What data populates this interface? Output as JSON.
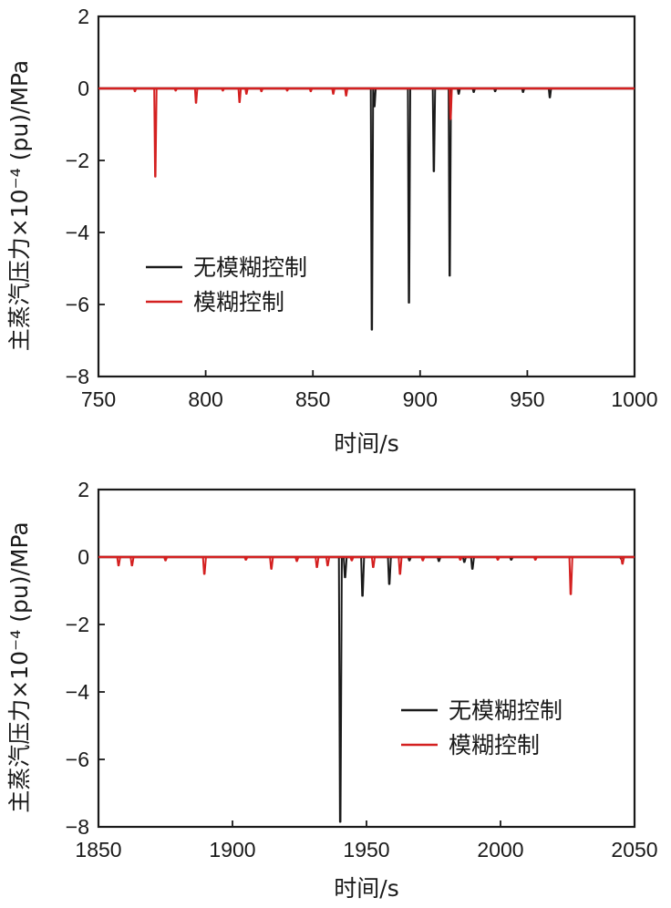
{
  "chart_data": [
    {
      "type": "line",
      "title": "",
      "xlabel": "时间/s",
      "ylabel": "主蒸汽压力×10⁻⁴ (pu)/MPa",
      "xlim": [
        750,
        1000
      ],
      "ylim": [
        -8,
        2
      ],
      "xticks": [
        750,
        800,
        850,
        900,
        950,
        1000
      ],
      "yticks": [
        2,
        0,
        -2,
        -4,
        -6,
        -8
      ],
      "xtick_labels": [
        "750",
        "800",
        "850",
        "900",
        "950",
        "1000"
      ],
      "ytick_labels": [
        "2",
        "0",
        "−2",
        "−4",
        "−6",
        "−8"
      ],
      "grid": false,
      "legend_position": "lower-left",
      "baseline": 0,
      "series": [
        {
          "name": "无模糊控制",
          "color": "#1a1a1a",
          "spikes": [
            {
              "x": 877.5,
              "y": -6.7
            },
            {
              "x": 878.7,
              "y": -0.5
            },
            {
              "x": 894.8,
              "y": -5.95
            },
            {
              "x": 906.4,
              "y": -2.3
            },
            {
              "x": 913.8,
              "y": -5.2
            },
            {
              "x": 918,
              "y": -0.15
            },
            {
              "x": 925,
              "y": -0.1
            },
            {
              "x": 935,
              "y": -0.08
            },
            {
              "x": 948,
              "y": -0.1
            },
            {
              "x": 960.5,
              "y": -0.25
            }
          ]
        },
        {
          "name": "模糊控制",
          "color": "#d42020",
          "spikes": [
            {
              "x": 767,
              "y": -0.08
            },
            {
              "x": 776.5,
              "y": -2.45
            },
            {
              "x": 786,
              "y": -0.06
            },
            {
              "x": 795.5,
              "y": -0.4
            },
            {
              "x": 808,
              "y": -0.06
            },
            {
              "x": 815.8,
              "y": -0.38
            },
            {
              "x": 819,
              "y": -0.15
            },
            {
              "x": 826,
              "y": -0.08
            },
            {
              "x": 838,
              "y": -0.06
            },
            {
              "x": 849,
              "y": -0.08
            },
            {
              "x": 859.5,
              "y": -0.15
            },
            {
              "x": 865.5,
              "y": -0.2
            },
            {
              "x": 914.2,
              "y": -0.85
            }
          ]
        }
      ]
    },
    {
      "type": "line",
      "title": "",
      "xlabel": "时间/s",
      "ylabel": "主蒸汽压力×10⁻⁴ (pu)/MPa",
      "xlim": [
        1850,
        2050
      ],
      "ylim": [
        -8,
        2
      ],
      "xticks": [
        1850,
        1900,
        1950,
        2000,
        2050
      ],
      "yticks": [
        2,
        0,
        -2,
        -4,
        -6,
        -8
      ],
      "xtick_labels": [
        "1850",
        "1900",
        "1950",
        "2000",
        "2050"
      ],
      "ytick_labels": [
        "2",
        "0",
        "−2",
        "−4",
        "−6",
        "−8"
      ],
      "grid": false,
      "legend_position": "lower-right",
      "baseline": 0,
      "series": [
        {
          "name": "无模糊控制",
          "color": "#1a1a1a",
          "spikes": [
            {
              "x": 1940.2,
              "y": -7.85
            },
            {
              "x": 1942,
              "y": -0.6
            },
            {
              "x": 1948.5,
              "y": -1.15
            },
            {
              "x": 1958.5,
              "y": -0.8
            },
            {
              "x": 1966,
              "y": -0.1
            },
            {
              "x": 1977,
              "y": -0.12
            },
            {
              "x": 1986.5,
              "y": -0.15
            },
            {
              "x": 1989.5,
              "y": -0.35
            },
            {
              "x": 2004,
              "y": -0.08
            },
            {
              "x": 2045,
              "y": -0.05
            }
          ]
        },
        {
          "name": "模糊控制",
          "color": "#d42020",
          "spikes": [
            {
              "x": 1857.5,
              "y": -0.25
            },
            {
              "x": 1862.5,
              "y": -0.25
            },
            {
              "x": 1875,
              "y": -0.1
            },
            {
              "x": 1889.5,
              "y": -0.5
            },
            {
              "x": 1905,
              "y": -0.08
            },
            {
              "x": 1914.5,
              "y": -0.35
            },
            {
              "x": 1924,
              "y": -0.12
            },
            {
              "x": 1931.5,
              "y": -0.3
            },
            {
              "x": 1935.5,
              "y": -0.25
            },
            {
              "x": 1944.5,
              "y": -0.1
            },
            {
              "x": 1952.5,
              "y": -0.3
            },
            {
              "x": 1962.5,
              "y": -0.5
            },
            {
              "x": 1971,
              "y": -0.1
            },
            {
              "x": 1985,
              "y": -0.08
            },
            {
              "x": 1999,
              "y": -0.08
            },
            {
              "x": 2013,
              "y": -0.08
            },
            {
              "x": 2026.2,
              "y": -1.1
            },
            {
              "x": 2045.5,
              "y": -0.2
            }
          ]
        }
      ]
    }
  ]
}
